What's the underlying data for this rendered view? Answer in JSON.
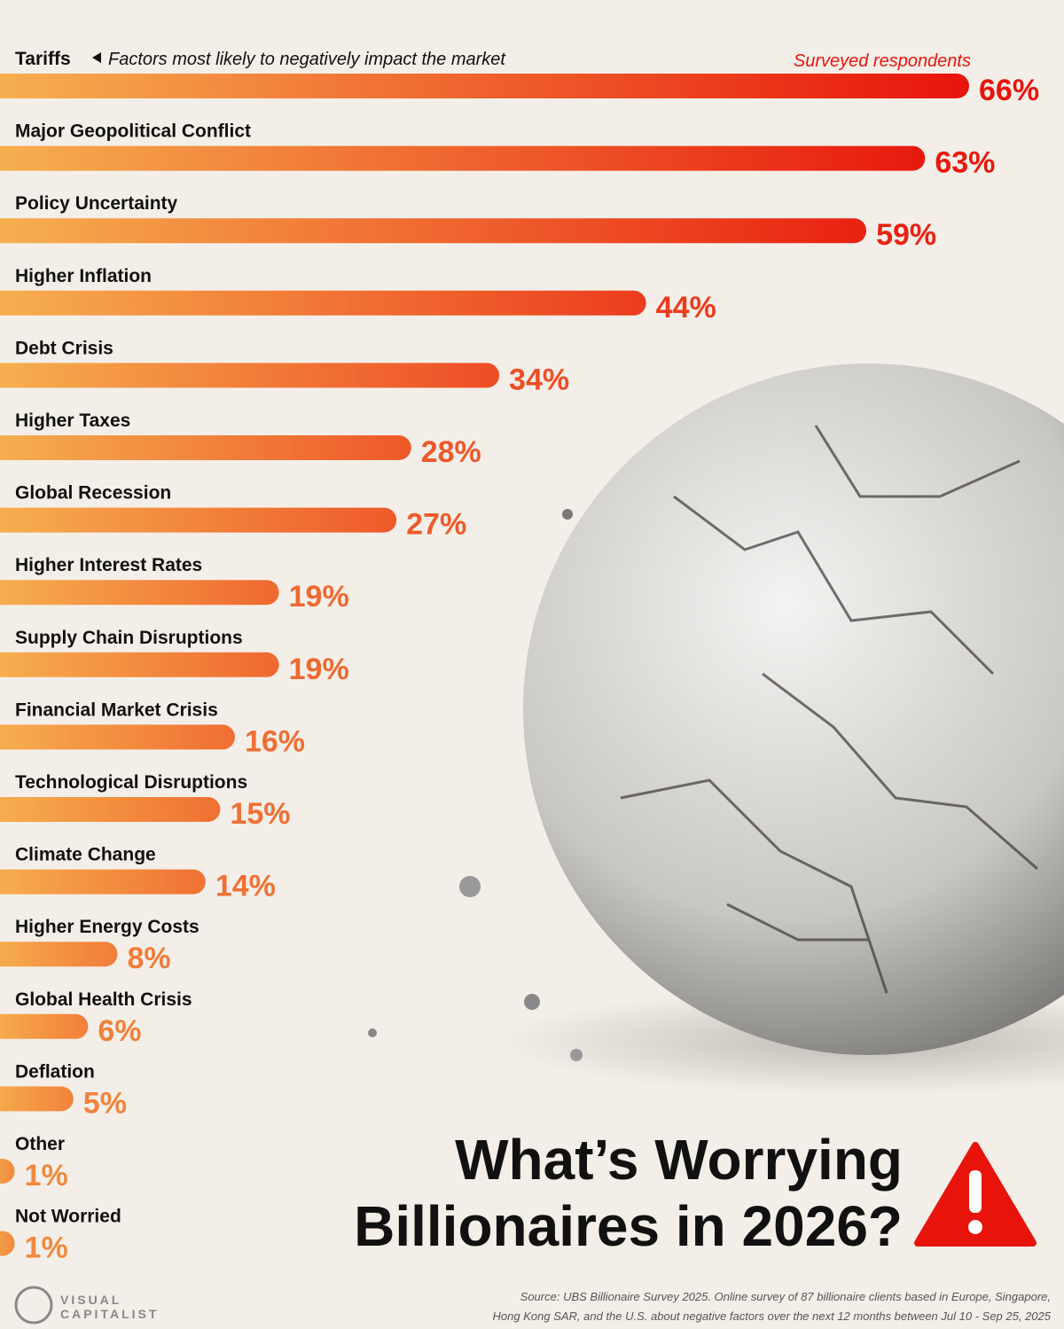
{
  "chart_data": {
    "type": "hbar",
    "title": [
      "What’s Worrying",
      "Billionaires in 2026?"
    ],
    "subtitle": "Factors most likely to negatively impact the market",
    "legend": "Surveyed respondents",
    "categories": [
      "Tariffs",
      "Major Geopolitical Conflict",
      "Policy Uncertainty",
      "Higher Inflation",
      "Debt Crisis",
      "Higher Taxes",
      "Global Recession",
      "Higher Interest Rates",
      "Supply Chain Disruptions",
      "Financial Market Crisis",
      "Technological Disruptions",
      "Climate Change",
      "Higher Energy Costs",
      "Global Health Crisis",
      "Deflation",
      "Other",
      "Not Worried"
    ],
    "values": [
      66,
      63,
      59,
      44,
      34,
      28,
      27,
      19,
      19,
      16,
      15,
      14,
      8,
      6,
      5,
      1,
      1
    ],
    "value_labels": [
      "66%",
      "63%",
      "59%",
      "44%",
      "34%",
      "28%",
      "27%",
      "19%",
      "19%",
      "16%",
      "15%",
      "14%",
      "8%",
      "6%",
      "5%",
      "1%",
      "1%"
    ],
    "color_start": "#f6b250",
    "color_end": "#e8140c",
    "source": [
      "Source: UBS Billionaire Survey 2025. Online survey of 87 billionaire clients based in Europe, Singapore,",
      "Hong Kong SAR, and the U.S. about negative factors over the next 12 months between Jul 10 - Sep 25, 2025"
    ],
    "logo": [
      "VISUAL",
      "CAPITALIST"
    ]
  }
}
